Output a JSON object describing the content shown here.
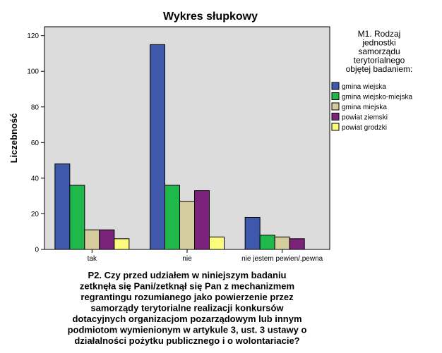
{
  "chart_data": {
    "type": "bar",
    "title": "Wykres słupkowy",
    "ylabel": "Liczebność",
    "xlabel_lines": [
      "P2. Czy przed udziałem w niniejszym badaniu",
      "zetknęła się Pani/zetknął się Pan z mechanizmem",
      "regrantingu rozumianego jako powierzenie przez",
      "samorządy terytorialne realizacji konkursów",
      "dotacyjnych organizacjom pozarządowym lub innym",
      "podmiotom wymienionym w artykule 3, ust. 3 ustawy o",
      "działalności pożytku publicznego i o wolontariacie?"
    ],
    "categories": [
      "tak",
      "nie",
      "nie jestem pewien/.pewna"
    ],
    "ylim": [
      0,
      125
    ],
    "yticks": [
      0,
      20,
      40,
      60,
      80,
      100,
      120
    ],
    "grid": false,
    "legend": {
      "position": "right",
      "title_lines": [
        "M1. Rodzaj",
        "jednostki",
        "samorządu",
        "terytorialnego",
        "objętej badaniem:"
      ]
    },
    "series": [
      {
        "name": "gmina wiejska",
        "color": "#3e58ac",
        "values": [
          48,
          115,
          18
        ]
      },
      {
        "name": "gmina wiejsko-miejska",
        "color": "#1fb94b",
        "values": [
          36,
          36,
          8
        ]
      },
      {
        "name": "gmina miejska",
        "color": "#d4cc9c",
        "values": [
          11,
          27,
          7
        ]
      },
      {
        "name": "powiat ziemski",
        "color": "#7b237b",
        "values": [
          11,
          33,
          6
        ]
      },
      {
        "name": "powiat grodzki",
        "color": "#fcfc7c",
        "values": [
          6,
          7,
          0
        ]
      }
    ],
    "plot_background": "#dcdcdc"
  }
}
